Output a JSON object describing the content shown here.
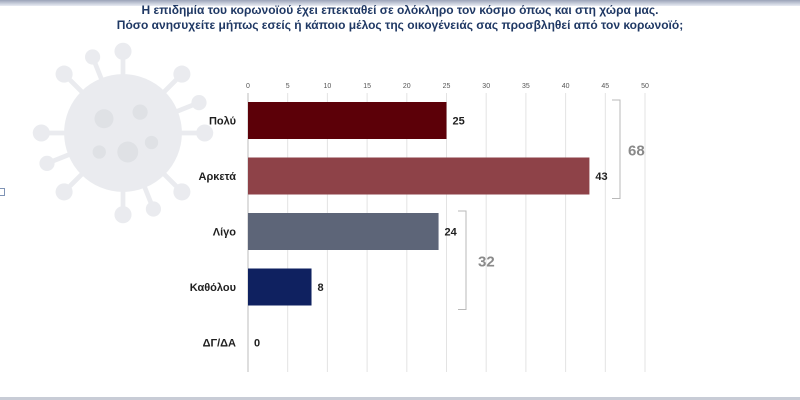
{
  "header": {
    "line1": "Η επιδημία του κορωνοϊού έχει επεκταθεί σε ολόκληρο τον κόσμο όπως και στη χώρα μας.",
    "line2": "Πόσο ανησυχείτε μήπως εσείς ή κάποιο μέλος της οικογένειάς σας προσβληθεί από τον κορωνοϊό;"
  },
  "chart_data": {
    "type": "bar",
    "orientation": "horizontal",
    "categories": [
      "Πολύ",
      "Αρκετά",
      "Λίγο",
      "Καθόλου",
      "ΔΓ/ΔΑ"
    ],
    "values": [
      25,
      43,
      24,
      8,
      0
    ],
    "colors": [
      "#5c0008",
      "#8e4248",
      "#5d6578",
      "#0f2160",
      "#0f2160"
    ],
    "xlim": [
      0,
      50
    ],
    "xticks": [
      0,
      5,
      10,
      15,
      20,
      25,
      30,
      35,
      40,
      45,
      50
    ],
    "grid": true,
    "group_totals": [
      {
        "label": "68",
        "from": 0,
        "to": 1
      },
      {
        "label": "32",
        "from": 2,
        "to": 3
      }
    ]
  }
}
